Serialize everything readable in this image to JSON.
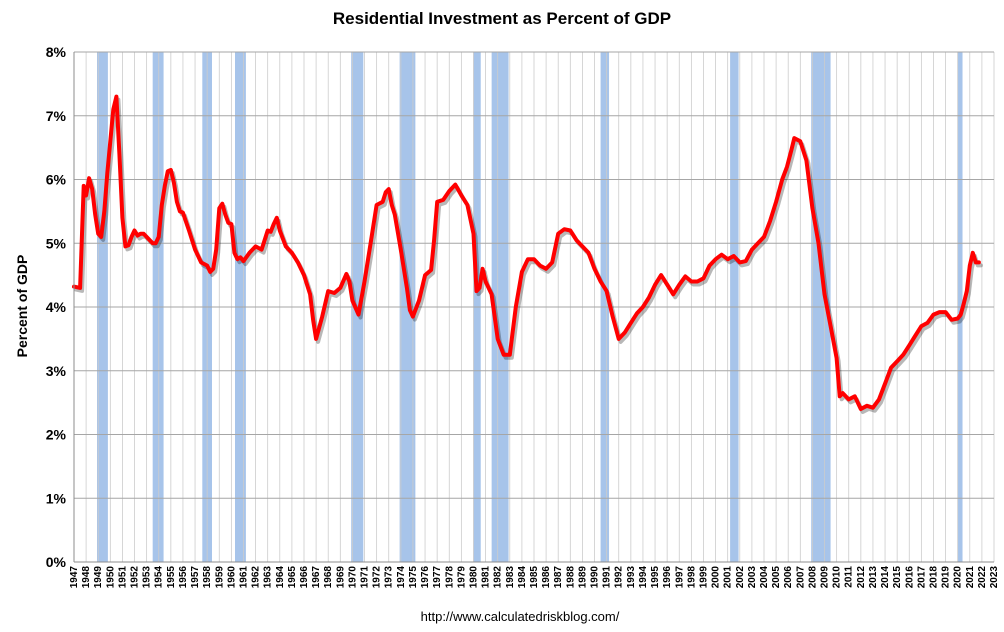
{
  "chart_data": {
    "type": "line",
    "title": "Residential Investment as Percent of GDP",
    "ylabel": "Percent of GDP",
    "xlabel": "",
    "source": "http://www.calculatedriskblog.com/",
    "ylim": [
      0,
      8
    ],
    "xlim": [
      1947,
      2023
    ],
    "yticks": [
      "0%",
      "1%",
      "2%",
      "3%",
      "4%",
      "5%",
      "6%",
      "7%",
      "8%"
    ],
    "xticks": [
      "1947",
      "1948",
      "1949",
      "1950",
      "1951",
      "1952",
      "1953",
      "1954",
      "1955",
      "1956",
      "1957",
      "1958",
      "1959",
      "1960",
      "1961",
      "1962",
      "1963",
      "1964",
      "1965",
      "1966",
      "1967",
      "1968",
      "1969",
      "1970",
      "1971",
      "1972",
      "1973",
      "1974",
      "1975",
      "1976",
      "1977",
      "1978",
      "1979",
      "1980",
      "1981",
      "1982",
      "1983",
      "1984",
      "1985",
      "1986",
      "1987",
      "1988",
      "1989",
      "1990",
      "1991",
      "1992",
      "1993",
      "1994",
      "1995",
      "1996",
      "1997",
      "1998",
      "1999",
      "2000",
      "2001",
      "2002",
      "2003",
      "2004",
      "2005",
      "2006",
      "2007",
      "2008",
      "2009",
      "2010",
      "2011",
      "2012",
      "2013",
      "2014",
      "2015",
      "2016",
      "2017",
      "2018",
      "2019",
      "2020",
      "2021",
      "2022",
      "2023"
    ],
    "grid": true,
    "line_color": "#ff0000",
    "recession_color": "#a7c4ea",
    "recessions": [
      [
        1948.9,
        1949.8
      ],
      [
        1953.5,
        1954.4
      ],
      [
        1957.6,
        1958.4
      ],
      [
        1960.3,
        1961.2
      ],
      [
        1969.9,
        1970.9
      ],
      [
        1973.9,
        1975.2
      ],
      [
        1980.0,
        1980.6
      ],
      [
        1981.5,
        1982.9
      ],
      [
        1990.5,
        1991.2
      ],
      [
        2001.2,
        2001.9
      ],
      [
        2007.9,
        2009.5
      ],
      [
        2020.0,
        2020.4
      ]
    ],
    "series": [
      {
        "name": "",
        "x": [
          1947.0,
          1947.5,
          1947.8,
          1948.0,
          1948.25,
          1948.5,
          1948.75,
          1949.0,
          1949.25,
          1949.5,
          1949.75,
          1950.0,
          1950.25,
          1950.5,
          1950.75,
          1951.0,
          1951.25,
          1951.5,
          1951.75,
          1952.0,
          1952.25,
          1952.5,
          1952.75,
          1953.0,
          1953.5,
          1953.75,
          1954.0,
          1954.25,
          1954.5,
          1954.75,
          1955.0,
          1955.25,
          1955.5,
          1955.75,
          1956.0,
          1956.5,
          1957.0,
          1957.5,
          1958.0,
          1958.25,
          1958.5,
          1958.75,
          1959.0,
          1959.25,
          1959.5,
          1959.75,
          1960.0,
          1960.25,
          1960.5,
          1960.75,
          1961.0,
          1961.5,
          1962.0,
          1962.5,
          1963.0,
          1963.25,
          1963.5,
          1963.75,
          1964.0,
          1964.5,
          1965.0,
          1965.5,
          1966.0,
          1966.5,
          1966.75,
          1967.0,
          1967.5,
          1968.0,
          1968.5,
          1969.0,
          1969.5,
          1969.75,
          1970.0,
          1970.5,
          1971.0,
          1971.5,
          1972.0,
          1972.5,
          1972.75,
          1973.0,
          1973.25,
          1973.5,
          1974.0,
          1974.5,
          1974.75,
          1975.0,
          1975.5,
          1976.0,
          1976.5,
          1976.75,
          1977.0,
          1977.5,
          1978.0,
          1978.5,
          1979.0,
          1979.5,
          1980.0,
          1980.25,
          1980.5,
          1980.75,
          1981.0,
          1981.5,
          1982.0,
          1982.5,
          1983.0,
          1983.5,
          1984.0,
          1984.5,
          1985.0,
          1985.5,
          1986.0,
          1986.5,
          1987.0,
          1987.5,
          1988.0,
          1988.5,
          1989.0,
          1989.5,
          1990.0,
          1990.5,
          1991.0,
          1991.5,
          1992.0,
          1992.5,
          1993.0,
          1993.5,
          1994.0,
          1994.5,
          1995.0,
          1995.5,
          1996.0,
          1996.5,
          1997.0,
          1997.5,
          1998.0,
          1998.5,
          1999.0,
          1999.5,
          2000.0,
          2000.5,
          2001.0,
          2001.5,
          2002.0,
          2002.5,
          2003.0,
          2003.5,
          2004.0,
          2004.5,
          2005.0,
          2005.5,
          2005.9,
          2006.25,
          2006.5,
          2007.0,
          2007.5,
          2008.0,
          2008.5,
          2009.0,
          2009.5,
          2010.0,
          2010.25,
          2010.5,
          2011.0,
          2011.5,
          2012.0,
          2012.5,
          2013.0,
          2013.5,
          2014.0,
          2014.5,
          2015.0,
          2015.5,
          2016.0,
          2016.5,
          2017.0,
          2017.5,
          2018.0,
          2018.5,
          2019.0,
          2019.5,
          2020.0,
          2020.25,
          2020.5,
          2020.75,
          2021.0,
          2021.25,
          2021.5,
          2021.75
        ],
        "y": [
          4.32,
          4.3,
          5.9,
          5.75,
          6.02,
          5.85,
          5.45,
          5.15,
          5.1,
          5.5,
          6.1,
          6.6,
          7.1,
          7.3,
          6.4,
          5.4,
          4.95,
          4.97,
          5.1,
          5.2,
          5.12,
          5.15,
          5.15,
          5.1,
          5.0,
          5.0,
          5.1,
          5.6,
          5.9,
          6.13,
          6.15,
          5.95,
          5.65,
          5.5,
          5.48,
          5.2,
          4.9,
          4.7,
          4.65,
          4.55,
          4.6,
          4.9,
          5.55,
          5.62,
          5.45,
          5.32,
          5.3,
          4.85,
          4.75,
          4.78,
          4.72,
          4.85,
          4.95,
          4.9,
          5.2,
          5.18,
          5.3,
          5.4,
          5.2,
          4.95,
          4.85,
          4.7,
          4.5,
          4.2,
          3.8,
          3.5,
          3.85,
          4.25,
          4.22,
          4.3,
          4.52,
          4.4,
          4.1,
          3.88,
          4.4,
          5.0,
          5.6,
          5.65,
          5.8,
          5.85,
          5.6,
          5.45,
          4.9,
          4.3,
          3.95,
          3.85,
          4.1,
          4.5,
          4.58,
          5.05,
          5.65,
          5.68,
          5.82,
          5.92,
          5.75,
          5.6,
          5.15,
          4.25,
          4.3,
          4.6,
          4.4,
          4.2,
          3.5,
          3.25,
          3.25,
          4.0,
          4.55,
          4.75,
          4.75,
          4.65,
          4.6,
          4.7,
          5.15,
          5.22,
          5.2,
          5.05,
          4.95,
          4.85,
          4.6,
          4.4,
          4.25,
          3.85,
          3.5,
          3.6,
          3.75,
          3.9,
          4.0,
          4.15,
          4.35,
          4.5,
          4.35,
          4.2,
          4.35,
          4.48,
          4.4,
          4.4,
          4.45,
          4.65,
          4.75,
          4.82,
          4.75,
          4.8,
          4.7,
          4.72,
          4.9,
          5.0,
          5.1,
          5.35,
          5.65,
          6.0,
          6.2,
          6.45,
          6.65,
          6.6,
          6.3,
          5.55,
          5.0,
          4.2,
          3.7,
          3.2,
          2.6,
          2.65,
          2.55,
          2.6,
          2.4,
          2.45,
          2.42,
          2.55,
          2.8,
          3.05,
          3.15,
          3.25,
          3.4,
          3.55,
          3.7,
          3.75,
          3.88,
          3.92,
          3.92,
          3.8,
          3.82,
          3.88,
          4.05,
          4.25,
          4.65,
          4.85,
          4.7,
          4.7
        ]
      }
    ]
  }
}
